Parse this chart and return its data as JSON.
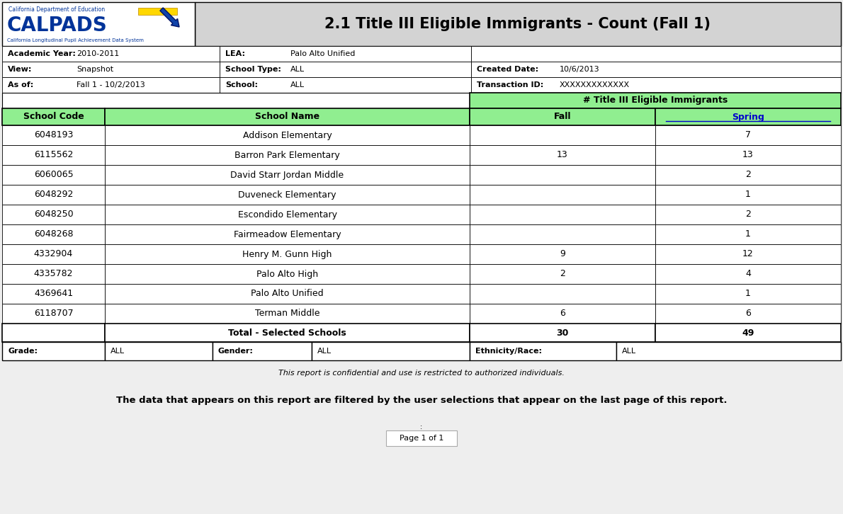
{
  "title": "2.1 Title III Eligible Immigrants - Count (Fall 1)",
  "header_bg": "#d3d3d3",
  "title_fontsize": 15,
  "meta_rows": [
    {
      "col1_label": "Academic Year:",
      "col1_val": "2010-2011",
      "col2_label": "LEA:",
      "col2_val": "Palo Alto Unified",
      "col3_label": "",
      "col3_val": ""
    },
    {
      "col1_label": "View:",
      "col1_val": "Snapshot",
      "col2_label": "School Type:",
      "col2_val": "ALL",
      "col3_label": "Created Date:",
      "col3_val": "10/6/2013"
    },
    {
      "col1_label": "As of:",
      "col1_val": "Fall 1 - 10/2/2013",
      "col2_label": "School:",
      "col2_val": "ALL",
      "col3_label": "Transaction ID:",
      "col3_val": "XXXXXXXXXXXXX"
    }
  ],
  "group_header": "# Title III Eligible Immigrants",
  "col_headers": [
    "School Code",
    "School Name",
    "Fall",
    "Spring"
  ],
  "col_header_bg": "#90EE90",
  "data_rows": [
    {
      "code": "6048193",
      "name": "Addison Elementary",
      "fall": "",
      "spring": "7"
    },
    {
      "code": "6115562",
      "name": "Barron Park Elementary",
      "fall": "13",
      "spring": "13"
    },
    {
      "code": "6060065",
      "name": "David Starr Jordan Middle",
      "fall": "",
      "spring": "2"
    },
    {
      "code": "6048292",
      "name": "Duveneck Elementary",
      "fall": "",
      "spring": "1"
    },
    {
      "code": "6048250",
      "name": "Escondido Elementary",
      "fall": "",
      "spring": "2"
    },
    {
      "code": "6048268",
      "name": "Fairmeadow Elementary",
      "fall": "",
      "spring": "1"
    },
    {
      "code": "4332904",
      "name": "Henry M. Gunn High",
      "fall": "9",
      "spring": "12"
    },
    {
      "code": "4335782",
      "name": "Palo Alto High",
      "fall": "2",
      "spring": "4"
    },
    {
      "code": "4369641",
      "name": "Palo Alto Unified",
      "fall": "",
      "spring": "1"
    },
    {
      "code": "6118707",
      "name": "Terman Middle",
      "fall": "6",
      "spring": "6"
    }
  ],
  "total_row": {
    "name": "Total - Selected Schools",
    "fall": "30",
    "spring": "49"
  },
  "footer_row": {
    "grade_label": "Grade:",
    "grade_val": "ALL",
    "gender_label": "Gender:",
    "gender_val": "ALL",
    "ethnicity_label": "Ethnicity/Race:",
    "ethnicity_val": "ALL"
  },
  "confidential_text": "This report is confidential and use is restricted to authorized individuals.",
  "filter_text": "The data that appears on this report are filtered by the user selections that appear on the last page of this report.",
  "page_text": "Page 1 of 1",
  "bg_color": "#eeeeee",
  "white": "#ffffff",
  "green_header": "#90EE90",
  "spring_color": "#0000CC",
  "logo_blue": "#003399",
  "logo_text_small": "#003399",
  "arrow_yellow": "#FFD700",
  "arrow_blue": "#1144AA"
}
